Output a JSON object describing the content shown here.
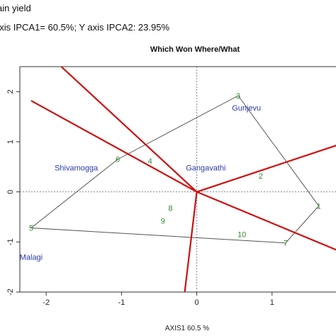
{
  "header": {
    "line1": "ain yield",
    "line2": "axis IPCA1= 60.5%; Y axis IPCA2: 23.95%"
  },
  "chart_data": {
    "type": "scatter",
    "title": "Which Won Where/What",
    "xlabel": "AXIS1 60.5 %",
    "ylabel": "",
    "xlim": [
      -2.35,
      2.0
    ],
    "ylim": [
      -2.0,
      2.5
    ],
    "x_ticks": [
      -2,
      -1,
      0,
      1,
      2
    ],
    "y_ticks": [
      2,
      1,
      0,
      -1,
      -2
    ],
    "y_tick_labels": [
      "2",
      "1",
      "0",
      "-1",
      "-2"
    ],
    "grid": false,
    "legend": "none",
    "colors": {
      "environment": "#2b3aa8",
      "genotype": "#2e8b2e",
      "hull": "#555555",
      "ray": "#cc1111",
      "origin_lines": "#888888"
    },
    "genotypes": [
      {
        "label": "1",
        "x": 1.62,
        "y": -0.28
      },
      {
        "label": "2",
        "x": 0.85,
        "y": 0.32
      },
      {
        "label": "3",
        "x": 0.55,
        "y": 1.92
      },
      {
        "label": "4",
        "x": -0.62,
        "y": 0.62
      },
      {
        "label": "5",
        "x": -2.2,
        "y": -0.72
      },
      {
        "label": "6",
        "x": -1.05,
        "y": 0.65
      },
      {
        "label": "7",
        "x": 1.18,
        "y": -1.02
      },
      {
        "label": "8",
        "x": -0.35,
        "y": -0.32
      },
      {
        "label": "9",
        "x": -0.45,
        "y": -0.58
      },
      {
        "label": "10",
        "x": 0.6,
        "y": -0.85
      }
    ],
    "environments": [
      {
        "name": "Gunjevu",
        "x": 0.66,
        "y": 1.68
      },
      {
        "name": "Shivamogga",
        "x": -1.6,
        "y": 0.48
      },
      {
        "name": "Gangavathi",
        "x": 0.12,
        "y": 0.48
      },
      {
        "name": "Malagi",
        "x": -2.2,
        "y": -1.3
      }
    ],
    "hull_order": [
      "3",
      "1",
      "7",
      "5",
      "6"
    ],
    "rays": [
      {
        "to_x": -1.8,
        "to_y": 2.5
      },
      {
        "to_x": -2.2,
        "to_y": 1.82
      },
      {
        "to_x": 2.0,
        "to_y": 1.0
      },
      {
        "to_x": 2.0,
        "to_y": -1.25
      },
      {
        "to_x": -0.16,
        "to_y": -2.0
      }
    ]
  }
}
